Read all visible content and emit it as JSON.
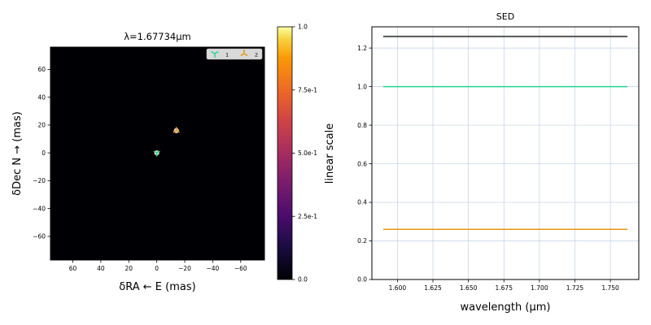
{
  "chart_data": [
    {
      "type": "heatmap",
      "title": "λ=1.67734μm",
      "xlabel": "δRA ← E (mas)",
      "ylabel": "δDec N → (mas)",
      "xlim": [
        76,
        -77
      ],
      "ylim": [
        -77,
        76
      ],
      "xticks": [
        60,
        40,
        20,
        0,
        -20,
        -40,
        -60
      ],
      "yticks": [
        60,
        40,
        20,
        0,
        -20,
        -40,
        -60
      ],
      "xtick_labels": [
        "60",
        "40",
        "20",
        "0",
        "−20",
        "−40",
        "−60"
      ],
      "ytick_labels": [
        "60",
        "40",
        "20",
        "0",
        "−20",
        "−40",
        "−60"
      ],
      "background_color": "#000004",
      "legend": {
        "placement": "top-right",
        "entries": [
          {
            "label": "1",
            "color": "#22d48f",
            "marker": "tri-down"
          },
          {
            "label": "2",
            "color": "#e8950e",
            "marker": "tri-up"
          }
        ]
      },
      "points": [
        {
          "label": "1",
          "x": 0,
          "y": 0,
          "color": "#22d48f"
        },
        {
          "label": "2",
          "x": -14,
          "y": 16,
          "color": "#e8950e"
        }
      ],
      "grid": false
    },
    {
      "type": "colorbar",
      "label": "linear scale",
      "range": [
        0,
        1
      ],
      "ticks": [
        0,
        0.25,
        0.5,
        0.75,
        1
      ],
      "tick_labels": [
        "0.0",
        "2.5e-1",
        "5.0e-1",
        "7.5e-1",
        "1.0"
      ],
      "colormap": "inferno"
    },
    {
      "type": "line",
      "title": "SED",
      "xlabel": "wavelength (μm)",
      "ylabel": "",
      "xlim": [
        1.582,
        1.77
      ],
      "ylim": [
        0,
        1.31
      ],
      "xticks": [
        1.6,
        1.625,
        1.65,
        1.675,
        1.7,
        1.725,
        1.75
      ],
      "xtick_labels": [
        "1.600",
        "1.625",
        "1.650",
        "1.675",
        "1.700",
        "1.725",
        "1.750"
      ],
      "yticks": [
        0,
        0.2,
        0.4,
        0.6,
        0.8,
        1.0,
        1.2
      ],
      "ytick_labels": [
        "0.0",
        "0.2",
        "0.4",
        "0.6",
        "0.8",
        "1.0",
        "1.2"
      ],
      "grid": true,
      "series": [
        {
          "x": [
            1.59,
            1.762
          ],
          "values": [
            1.26,
            1.26
          ],
          "color": "#555555"
        },
        {
          "x": [
            1.59,
            1.762
          ],
          "values": [
            1.0,
            1.0
          ],
          "color": "#22d48f"
        },
        {
          "x": [
            1.59,
            1.762
          ],
          "values": [
            0.26,
            0.26
          ],
          "color": "#e8950e"
        }
      ]
    }
  ]
}
